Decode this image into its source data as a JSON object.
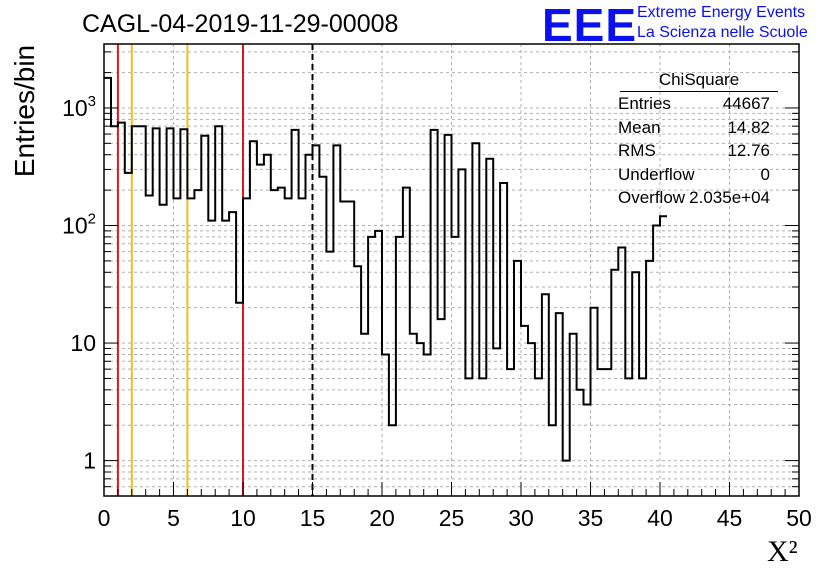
{
  "title": "CAGL-04-2019-11-29-00008",
  "logo": {
    "text": "EEE",
    "line1": "Extreme Energy Events",
    "line2": "La Scienza nelle Scuole",
    "color": "#0a10f0"
  },
  "stats": {
    "header": "ChiSquare",
    "rows": [
      {
        "key": "Entries",
        "value": "44667"
      },
      {
        "key": "Mean",
        "value": "14.82"
      },
      {
        "key": "RMS",
        "value": "12.76"
      },
      {
        "key": "Underflow",
        "value": "0"
      },
      {
        "key": "Overflow",
        "value": "2.035e+04"
      }
    ]
  },
  "chart_data": {
    "type": "histogram",
    "xlabel": "X²",
    "ylabel": "Entries/bin",
    "xlim": [
      0,
      50
    ],
    "ylim": [
      0.5,
      3500
    ],
    "log_y": true,
    "grid": true,
    "bin_width": 0.5,
    "x_ticks": [
      "0",
      "5",
      "10",
      "15",
      "20",
      "25",
      "30",
      "35",
      "40",
      "45",
      "50"
    ],
    "y_ticks": [
      {
        "value": 1,
        "label": "1"
      },
      {
        "value": 10,
        "label": "10"
      },
      {
        "value": 100,
        "label": "10²"
      },
      {
        "value": 1000,
        "label": "10³"
      }
    ],
    "values": [
      1800,
      700,
      750,
      280,
      700,
      700,
      180,
      670,
      150,
      670,
      170,
      660,
      170,
      200,
      580,
      110,
      700,
      110,
      130,
      22,
      170,
      520,
      330,
      400,
      200,
      210,
      170,
      650,
      170,
      400,
      480,
      260,
      60,
      480,
      160,
      160,
      45,
      12,
      80,
      90,
      8,
      2,
      80,
      210,
      12,
      10,
      8,
      650,
      16,
      590,
      80,
      300,
      5,
      500,
      5,
      370,
      9,
      230,
      6,
      50,
      14,
      10,
      5,
      26,
      2,
      18,
      1,
      12,
      4,
      3,
      20,
      6,
      6,
      42,
      65,
      5,
      40,
      5,
      50,
      100,
      120
    ],
    "vlines": [
      {
        "x": 1,
        "color": "#e8141c",
        "style": "solid"
      },
      {
        "x": 2,
        "color": "#f0c018",
        "style": "solid"
      },
      {
        "x": 6,
        "color": "#f0c018",
        "style": "solid"
      },
      {
        "x": 10,
        "color": "#e8141c",
        "style": "solid"
      },
      {
        "x": 15,
        "color": "#000000",
        "style": "dashed"
      }
    ]
  }
}
